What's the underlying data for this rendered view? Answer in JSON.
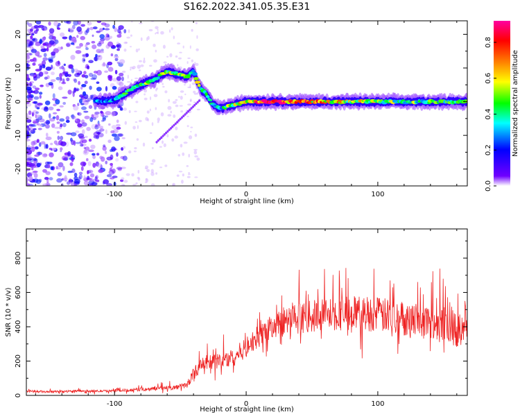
{
  "title": "S162.2022.341.05.35.E31",
  "chart_data": [
    {
      "type": "heatmap",
      "xlabel": "Height of straight line (km)",
      "ylabel": "Frequency (Hz)",
      "xlim": [
        -167,
        168
      ],
      "ylim": [
        -25,
        24
      ],
      "xticks": [
        -100,
        0,
        100
      ],
      "xtick_labels": [
        "-100",
        "0",
        "100"
      ],
      "yticks": [
        -20,
        -10,
        0,
        10,
        20
      ],
      "ytick_labels": [
        "-20",
        "-10",
        "0",
        "10",
        "20"
      ],
      "colorbar": {
        "label": "Normalized spectral amplitude",
        "range": [
          0.0,
          0.92
        ],
        "ticks": [
          0.0,
          0.2,
          0.4,
          0.6,
          0.8
        ],
        "tick_labels": [
          "0.0",
          "0.2",
          "0.4",
          "0.6",
          "0.8"
        ],
        "colormap": [
          "#ffffff",
          "#7000ff",
          "#0000ff",
          "#00ffff",
          "#00ff00",
          "#ffff00",
          "#ff8000",
          "#ff0000",
          "#ff00a0"
        ]
      },
      "ridge": {
        "x": [
          -115,
          -100,
          -90,
          -80,
          -70,
          -60,
          -50,
          -45,
          -40,
          -35,
          -30,
          -25,
          -20,
          -10,
          0,
          20,
          50,
          80,
          110,
          140,
          168
        ],
        "y": [
          0,
          0.5,
          3,
          5,
          6.5,
          9,
          8,
          7.5,
          9,
          4,
          2,
          -1,
          -2,
          -1,
          0,
          0,
          0,
          0,
          0,
          0,
          0
        ],
        "amplitude": [
          0.35,
          0.4,
          0.45,
          0.5,
          0.55,
          0.6,
          0.55,
          0.5,
          0.5,
          0.55,
          0.45,
          0.4,
          0.45,
          0.6,
          0.7,
          0.9,
          0.75,
          0.6,
          0.55,
          0.5,
          0.45
        ]
      },
      "grid": false
    },
    {
      "type": "line",
      "xlabel": "Height of straight line (km)",
      "ylabel": "SNR (10 * v/v)",
      "xlim": [
        -167,
        168
      ],
      "ylim": [
        0,
        970
      ],
      "xticks": [
        -100,
        0,
        100
      ],
      "xtick_labels": [
        "-100",
        "0",
        "100"
      ],
      "yticks": [
        0,
        200,
        400,
        600,
        800
      ],
      "ytick_labels": [
        "0",
        "200",
        "400",
        "600",
        "800"
      ],
      "line_color": "#ee2222",
      "x": [
        -167,
        -150,
        -130,
        -110,
        -90,
        -70,
        -55,
        -45,
        -40,
        -35,
        -30,
        -20,
        -10,
        0,
        10,
        20,
        30,
        40,
        50,
        60,
        70,
        80,
        90,
        100,
        110,
        120,
        130,
        140,
        150,
        160,
        168
      ],
      "y": [
        25,
        20,
        25,
        25,
        30,
        40,
        45,
        60,
        130,
        170,
        190,
        200,
        220,
        280,
        350,
        400,
        430,
        450,
        460,
        470,
        480,
        480,
        480,
        470,
        460,
        450,
        440,
        430,
        420,
        410,
        420
      ],
      "spread": [
        15,
        15,
        15,
        15,
        20,
        25,
        30,
        40,
        70,
        90,
        100,
        110,
        120,
        130,
        150,
        170,
        190,
        200,
        210,
        220,
        230,
        230,
        230,
        230,
        230,
        230,
        230,
        230,
        260,
        300,
        300
      ],
      "grid": false
    }
  ]
}
